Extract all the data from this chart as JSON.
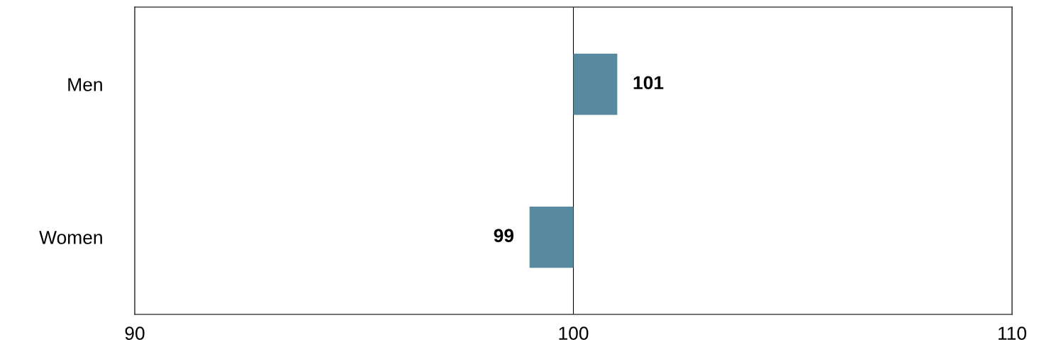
{
  "chart_data": {
    "type": "bar",
    "orientation": "horizontal",
    "categories": [
      "Men",
      "Women"
    ],
    "base": [
      100,
      100
    ],
    "values": [
      1,
      -1
    ],
    "value_labels": [
      "101",
      "99"
    ],
    "color": "#588a9f",
    "xlim": [
      90,
      110
    ],
    "xticks": [
      90,
      100,
      110
    ],
    "ref_lines": [
      {
        "axis": "x",
        "value": 100,
        "color": "#000000"
      }
    ],
    "grid": false,
    "legend": false
  }
}
